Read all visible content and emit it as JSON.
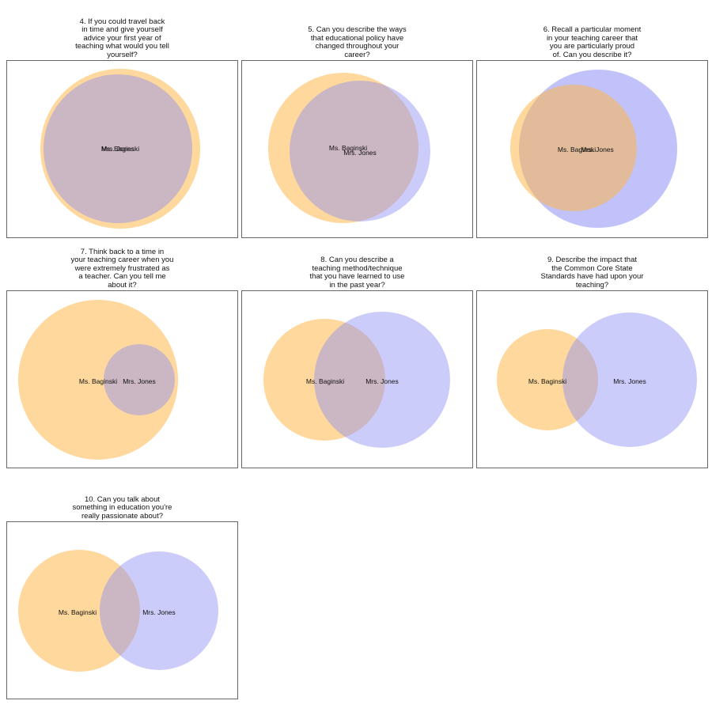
{
  "diagrams": [
    {
      "title": "4. If you could travel back\nin time and give yourself\nadvice your first year of\nteaching what would you tell\nyourself?",
      "set_a": "Ms. Baginski",
      "set_b": "Mrs. Jones"
    },
    {
      "title": "5. Can you describe the ways\nthat educational policy have\nchanged throughout your\ncareer?",
      "set_a": "Ms. Baginski",
      "set_b": "Mrs. Jones"
    },
    {
      "title": "6. Recall a particular moment\nin your teaching career that\nyou are particularly proud\nof.  Can you describe it?",
      "set_a": "Ms. Baginski",
      "set_b": "Mrs. Jones"
    },
    {
      "title": "7. Think back to a time in\nyour teaching career when you\nwere extremely frustrated as\na teacher.  Can you tell me\nabout it?",
      "set_a": "Ms. Baginski",
      "set_b": "Mrs. Jones"
    },
    {
      "title": "8. Can you describe a\nteaching method/technique\nthat you have learned to use\nin the past year?",
      "set_a": "Ms. Baginski",
      "set_b": "Mrs. Jones"
    },
    {
      "title": "9. Describe the impact that\nthe Common Core State\nStandards have had upon your\nteaching?",
      "set_a": "Ms. Baginski",
      "set_b": "Mrs. Jones"
    },
    {
      "title": "10. Can you talk about\nsomething in education you're\nreally passionate about?",
      "set_a": "Ms. Baginski",
      "set_b": "Mrs. Jones"
    }
  ],
  "colors": {
    "set_a": "#fdb84a",
    "set_b": "#8f8ff5",
    "overlap": "#d9b49a"
  }
}
